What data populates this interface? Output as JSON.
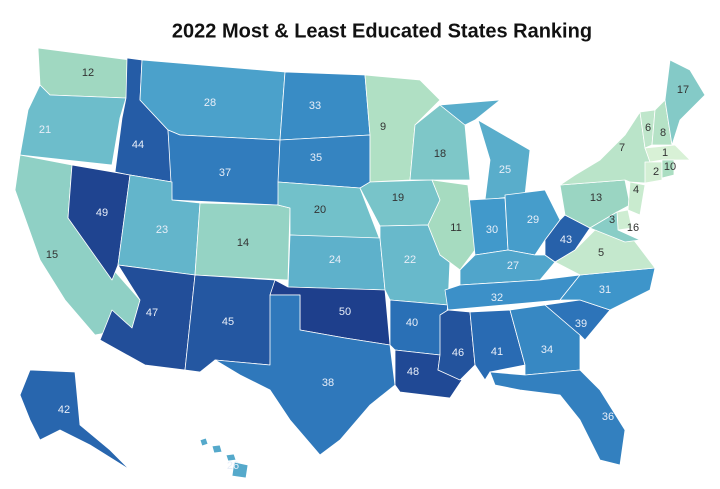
{
  "map": {
    "type": "choropleth",
    "title": "2022 Most & Least Educated States Ranking",
    "values": [
      12,
      21,
      15,
      49,
      44,
      28,
      37,
      23,
      14,
      47,
      45,
      33,
      35,
      20,
      24,
      50,
      38,
      9,
      19,
      22,
      40,
      48,
      18,
      11,
      25,
      30,
      29,
      27,
      32,
      46,
      41,
      34,
      36,
      39,
      31,
      5,
      43,
      13,
      7,
      4,
      3,
      16,
      6,
      8,
      17,
      1,
      2,
      10,
      42,
      26
    ],
    "colors": [
      "#d8f1d6",
      "#a7dcc0",
      "#6fbfcb",
      "#3f97cb",
      "#2a6fb6",
      "#1e3f8c"
    ]
  }
}
